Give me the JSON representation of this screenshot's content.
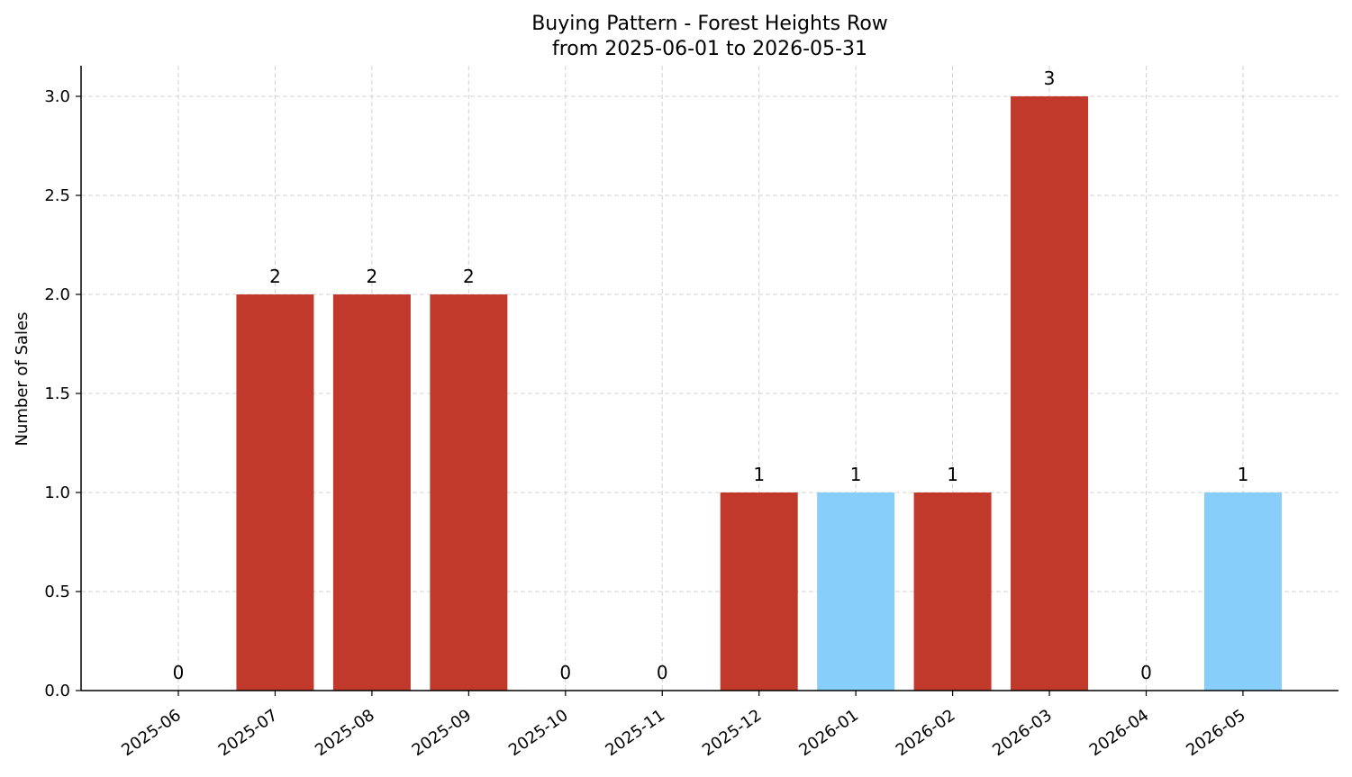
{
  "chart_data": {
    "type": "bar",
    "title": "Buying Pattern - Forest Heights Row",
    "subtitle": "from 2025-06-01 to 2026-05-31",
    "xlabel": "",
    "ylabel": "Number of Sales",
    "categories": [
      "2025-06",
      "2025-07",
      "2025-08",
      "2025-09",
      "2025-10",
      "2025-11",
      "2025-12",
      "2026-01",
      "2026-02",
      "2026-03",
      "2026-04",
      "2026-05"
    ],
    "values": [
      0,
      2,
      2,
      2,
      0,
      0,
      1,
      1,
      1,
      3,
      0,
      1
    ],
    "data_labels": [
      "0",
      "2",
      "2",
      "2",
      "0",
      "0",
      "1",
      "1",
      "1",
      "3",
      "0",
      "1"
    ],
    "bar_colors": [
      "#c0392b",
      "#c0392b",
      "#c0392b",
      "#c0392b",
      "#c0392b",
      "#c0392b",
      "#c0392b",
      "#87cefa",
      "#c0392b",
      "#c0392b",
      "#c0392b",
      "#87cefa"
    ],
    "yticks": [
      "0.0",
      "0.5",
      "1.0",
      "1.5",
      "2.0",
      "2.5",
      "3.0"
    ],
    "ylim": [
      0,
      3.15
    ],
    "grid": true,
    "legend": null
  }
}
